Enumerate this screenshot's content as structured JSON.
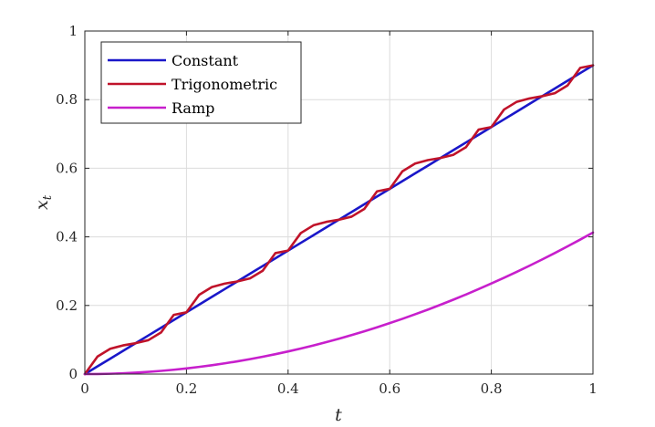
{
  "chart_data": {
    "type": "line",
    "title": "",
    "xlabel": "t",
    "ylabel": {
      "base": "x",
      "sub": "t"
    },
    "xlim": [
      0,
      1
    ],
    "ylim": [
      0,
      1
    ],
    "xticks": [
      0,
      0.2,
      0.4,
      0.6,
      0.8,
      1
    ],
    "yticks": [
      0,
      0.2,
      0.4,
      0.6,
      0.8,
      1
    ],
    "xtick_labels": [
      "0",
      "0.2",
      "0.4",
      "0.6",
      "0.8",
      "1"
    ],
    "ytick_labels": [
      "0",
      "0.2",
      "0.4",
      "0.6",
      "0.8",
      "1"
    ],
    "grid": true,
    "legend_position": "top-left",
    "x": [
      0,
      0.025,
      0.05,
      0.075,
      0.1,
      0.125,
      0.15,
      0.175,
      0.2,
      0.225,
      0.25,
      0.275,
      0.3,
      0.325,
      0.35,
      0.375,
      0.4,
      0.425,
      0.45,
      0.475,
      0.5,
      0.525,
      0.55,
      0.575,
      0.6,
      0.625,
      0.65,
      0.675,
      0.7,
      0.725,
      0.75,
      0.775,
      0.8,
      0.825,
      0.85,
      0.875,
      0.9,
      0.925,
      0.95,
      0.975,
      1
    ],
    "series": [
      {
        "name": "Constant",
        "color": "#1a17c9",
        "values": [
          0,
          0.0225,
          0.045,
          0.0675,
          0.09,
          0.1125,
          0.135,
          0.1575,
          0.18,
          0.2025,
          0.225,
          0.2475,
          0.27,
          0.2925,
          0.315,
          0.3375,
          0.36,
          0.3825,
          0.405,
          0.4275,
          0.45,
          0.4725,
          0.495,
          0.5175,
          0.54,
          0.5625,
          0.585,
          0.6075,
          0.63,
          0.6525,
          0.675,
          0.6975,
          0.72,
          0.7425,
          0.765,
          0.7875,
          0.81,
          0.8325,
          0.855,
          0.8775,
          0.9
        ]
      },
      {
        "name": "Trigonometric",
        "color": "#c0132a",
        "values": [
          0,
          0.0512,
          0.0737,
          0.0836,
          0.09,
          0.0989,
          0.1213,
          0.1726,
          0.18,
          0.2311,
          0.2537,
          0.2636,
          0.27,
          0.2789,
          0.3013,
          0.3526,
          0.36,
          0.4111,
          0.4337,
          0.4436,
          0.45,
          0.4589,
          0.4813,
          0.5326,
          0.54,
          0.5911,
          0.6137,
          0.6236,
          0.63,
          0.6389,
          0.6613,
          0.7126,
          0.72,
          0.7711,
          0.7937,
          0.8036,
          0.81,
          0.8189,
          0.8413,
          0.8926,
          0.9
        ]
      },
      {
        "name": "Ramp",
        "color": "#c71fcc",
        "values": [
          0,
          0.0003,
          0.001,
          0.0023,
          0.0041,
          0.0064,
          0.0093,
          0.0126,
          0.0165,
          0.0209,
          0.0258,
          0.0312,
          0.0371,
          0.0436,
          0.0505,
          0.058,
          0.066,
          0.0745,
          0.0835,
          0.0931,
          0.1031,
          0.1137,
          0.1248,
          0.1364,
          0.1485,
          0.1611,
          0.1743,
          0.1879,
          0.2021,
          0.2168,
          0.232,
          0.2477,
          0.264,
          0.2807,
          0.298,
          0.3158,
          0.3341,
          0.3529,
          0.3723,
          0.3921,
          0.4125
        ]
      }
    ]
  }
}
